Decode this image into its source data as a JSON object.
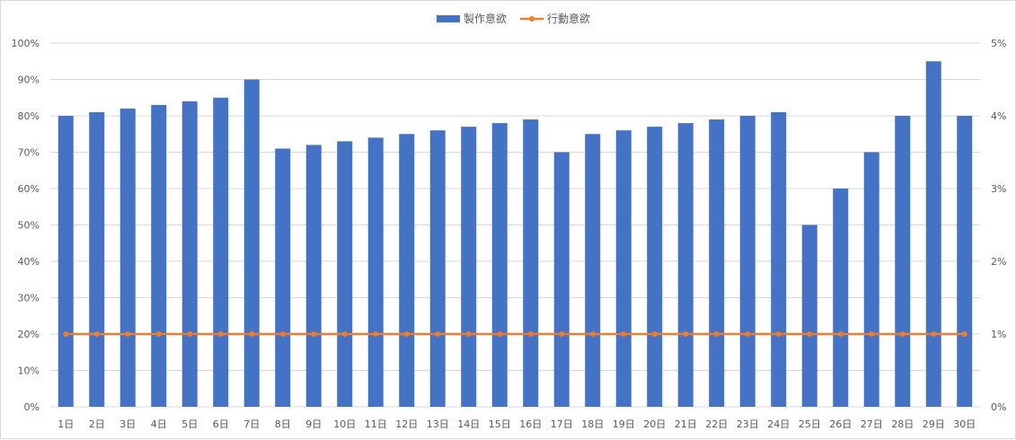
{
  "chart_data": {
    "type": "bar",
    "categories": [
      "1日",
      "2日",
      "3日",
      "4日",
      "5日",
      "6日",
      "7日",
      "8日",
      "9日",
      "10日",
      "11日",
      "12日",
      "13日",
      "14日",
      "15日",
      "16日",
      "17日",
      "18日",
      "19日",
      "20日",
      "21日",
      "22日",
      "23日",
      "24日",
      "25日",
      "26日",
      "27日",
      "28日",
      "29日",
      "30日"
    ],
    "series": [
      {
        "name": "製作意欲",
        "type": "bar",
        "axis": "left",
        "color": "#4472C4",
        "values": [
          80,
          81,
          82,
          83,
          84,
          85,
          90,
          71,
          72,
          73,
          74,
          75,
          76,
          77,
          78,
          79,
          70,
          75,
          76,
          77,
          78,
          79,
          80,
          81,
          50,
          60,
          70,
          80,
          95,
          80
        ]
      },
      {
        "name": "行動意欲",
        "type": "line",
        "axis": "right",
        "color": "#ED7D31",
        "values": [
          1,
          1,
          1,
          1,
          1,
          1,
          1,
          1,
          1,
          1,
          1,
          1,
          1,
          1,
          1,
          1,
          1,
          1,
          1,
          1,
          1,
          1,
          1,
          1,
          1,
          1,
          1,
          1,
          1,
          1
        ]
      }
    ],
    "y_left": {
      "ylim": [
        0,
        100
      ],
      "ticks": [
        0,
        10,
        20,
        30,
        40,
        50,
        60,
        70,
        80,
        90,
        100
      ],
      "tick_labels": [
        "0%",
        "10%",
        "20%",
        "30%",
        "40%",
        "50%",
        "60%",
        "70%",
        "80%",
        "90%",
        "100%"
      ]
    },
    "y_right": {
      "ylim": [
        0,
        5
      ],
      "ticks": [
        0,
        1,
        2,
        3,
        4,
        5
      ],
      "tick_labels": [
        "0%",
        "1%",
        "2%",
        "3%",
        "4%",
        "5%"
      ]
    },
    "grid": true,
    "gridline_color": "#d9d9d9",
    "legend_position": "top-center"
  }
}
